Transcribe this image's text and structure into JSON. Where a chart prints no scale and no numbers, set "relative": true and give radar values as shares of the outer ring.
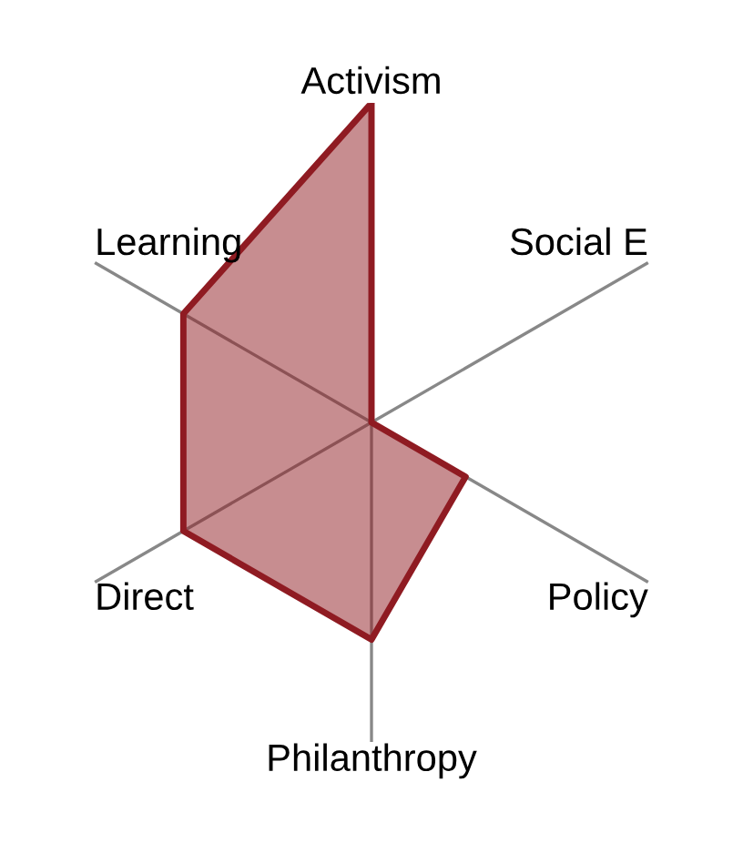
{
  "chart_data": {
    "type": "radar",
    "relative": true,
    "categories": [
      "Activism",
      "Social E",
      "Policy",
      "Philanthropy",
      "Direct",
      "Learning"
    ],
    "series": [
      {
        "color": "#8f1b22",
        "values": [
          1,
          0,
          0.34,
          0.68,
          0.68,
          0.68
        ]
      }
    ]
  }
}
